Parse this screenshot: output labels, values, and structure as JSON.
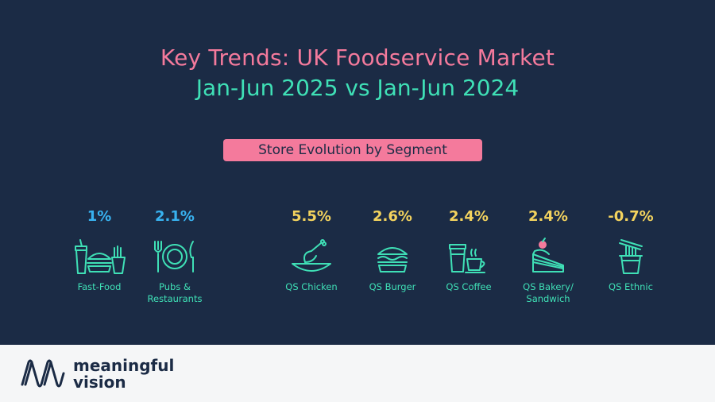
{
  "title_line1": "Key Trends: UK Foodservice Market",
  "title_line2": "Jan-Jun 2025 vs Jan-Jun 2024",
  "subtitle": "Store Evolution by Segment",
  "colors": {
    "background": "#1b2b45",
    "pink": "#f47a9c",
    "teal": "#3fe0b6",
    "blue": "#38b2f0",
    "yellow": "#f3d35e"
  },
  "segments": [
    {
      "value": "1%",
      "label": "Fast-Food",
      "icon": "fast-food-icon"
    },
    {
      "value": "2.1%",
      "label": "Pubs & Restaurants",
      "icon": "plate-cutlery-icon"
    },
    {
      "value": "5.5%",
      "label": "QS Chicken",
      "icon": "chicken-icon"
    },
    {
      "value": "2.6%",
      "label": "QS Burger",
      "icon": "burger-icon"
    },
    {
      "value": "2.4%",
      "label": "QS Coffee",
      "icon": "coffee-icon"
    },
    {
      "value": "2.4%",
      "label": "QS Bakery/ Sandwich",
      "icon": "cake-icon"
    },
    {
      "value": "-0.7%",
      "label": "QS Ethnic",
      "icon": "noodles-icon"
    }
  ],
  "footer": {
    "logo_line1": "meaningful",
    "logo_line2": "vision"
  }
}
